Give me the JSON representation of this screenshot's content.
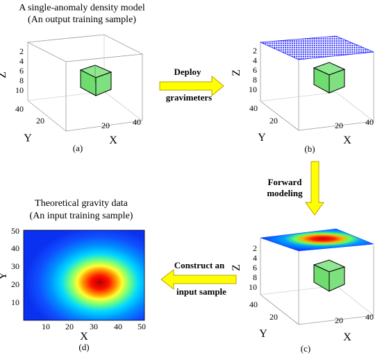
{
  "panel_a": {
    "title_line1": "A single-anomaly density model",
    "title_line2": "(An output training sample)",
    "label": "(a)",
    "axis_x": "X",
    "axis_y": "Y",
    "axis_z": "Z",
    "z_ticks": [
      "2",
      "4",
      "6",
      "8",
      "10"
    ],
    "y_ticks": [
      "40",
      "20"
    ],
    "x_ticks": [
      "20",
      "40"
    ]
  },
  "panel_b": {
    "label": "(b)",
    "axis_x": "X",
    "axis_y": "Y",
    "axis_z": "Z",
    "z_ticks": [
      "2",
      "4",
      "6",
      "8",
      "10"
    ],
    "y_ticks": [
      "40",
      "20"
    ],
    "x_ticks": [
      "20",
      "40"
    ]
  },
  "panel_c": {
    "label": "(c)",
    "axis_x": "X",
    "axis_y": "Y",
    "axis_z": "Z",
    "z_ticks": [
      "2",
      "4",
      "6",
      "8",
      "10"
    ],
    "y_ticks": [
      "40",
      "20"
    ],
    "x_ticks": [
      "20",
      "40"
    ]
  },
  "panel_d": {
    "title_line1": "Theoretical gravity data",
    "title_line2": "(An input training sample)",
    "label": "(d)",
    "axis_x": "X",
    "axis_y": "Y",
    "x_ticks": [
      "10",
      "20",
      "30",
      "40",
      "50"
    ],
    "y_ticks": [
      "50",
      "40",
      "30",
      "20",
      "10"
    ]
  },
  "arrows": {
    "deploy_line1": "Deploy",
    "deploy_line2": "gravimeters",
    "forward_line1": "Forward",
    "forward_line2": "modeling",
    "construct_line1": "Construct an",
    "construct_line2": "input sample"
  },
  "colors": {
    "anomaly_fill": "#7ee07e",
    "arrow_fill": "#ffff00",
    "arrow_stroke": "#b8a000",
    "gravimeter_dots": "#1a1aff",
    "heatmap_low": "#0a3cff",
    "heatmap_high": "#c80000"
  }
}
